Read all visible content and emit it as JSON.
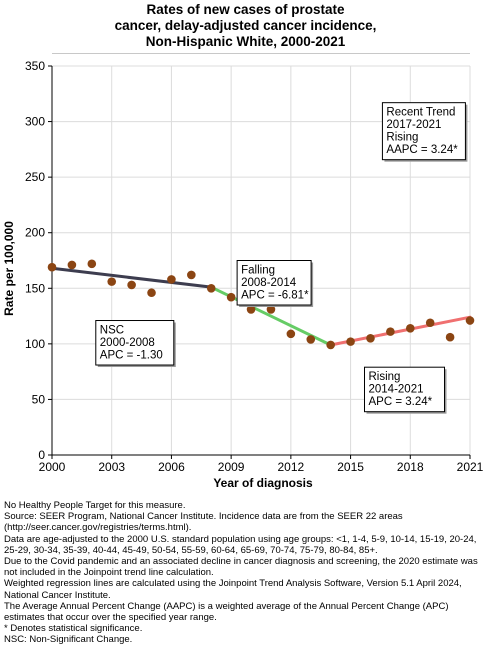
{
  "chart_data": {
    "type": "line",
    "title_lines": [
      "Rates of new cases of prostate",
      "cancer, delay-adjusted cancer incidence,",
      "Non-Hispanic White,  2000-2021"
    ],
    "xlabel": "Year of diagnosis",
    "ylabel": "Rate per 100,000",
    "xlim": [
      2000,
      2021
    ],
    "ylim": [
      0,
      350
    ],
    "x_ticks": [
      2000,
      2003,
      2006,
      2009,
      2012,
      2015,
      2018,
      2021
    ],
    "y_ticks": [
      0,
      50,
      100,
      150,
      200,
      250,
      300,
      350
    ],
    "grid": true,
    "observed": {
      "x": [
        2000,
        2001,
        2002,
        2003,
        2004,
        2005,
        2006,
        2007,
        2008,
        2009,
        2010,
        2011,
        2012,
        2013,
        2014,
        2015,
        2016,
        2017,
        2018,
        2019,
        2020,
        2021
      ],
      "y": [
        169,
        171,
        172,
        156,
        153,
        146,
        158,
        162,
        150,
        142,
        131,
        131,
        109,
        104,
        99,
        102,
        105,
        111,
        114,
        119,
        106,
        121
      ],
      "marker_color": "#8b4513"
    },
    "trend_segments": [
      {
        "x": [
          2000,
          2008
        ],
        "y": [
          168,
          151
        ],
        "color": "#3d3d4f"
      },
      {
        "x": [
          2008,
          2014
        ],
        "y": [
          151,
          99
        ],
        "color": "#66cc66"
      },
      {
        "x": [
          2014,
          2021
        ],
        "y": [
          99,
          124
        ],
        "color": "#f07070"
      }
    ],
    "annotations": [
      {
        "lines": [
          "NSC",
          "2000-2008",
          "APC = -1.30"
        ],
        "anchor_x": 2002.2,
        "anchor_y": 121,
        "box_w": 78
      },
      {
        "lines": [
          "Falling",
          "2008-2014",
          "APC = -6.81*"
        ],
        "anchor_x": 2009.3,
        "anchor_y": 175,
        "box_w": 74
      },
      {
        "lines": [
          "Rising",
          "2014-2021",
          "APC =  3.24*"
        ],
        "anchor_x": 2015.7,
        "anchor_y": 79,
        "box_w": 80
      },
      {
        "lines": [
          "Recent Trend",
          "2017-2021",
          "Rising",
          "AAPC =  3.24*"
        ],
        "anchor_x": 2016.6,
        "anchor_y": 317,
        "box_w": 83
      }
    ]
  },
  "footnotes": [
    "No Healthy People Target for this measure.",
    "Source: SEER Program, National Cancer Institute. Incidence data are from the SEER 22 areas (http://seer.cancer.gov/registries/terms.html).",
    "Data are age-adjusted to the 2000 U.S. standard population using age groups: <1, 1-4, 5-9, 10-14, 15-19, 20-24, 25-29, 30-34, 35-39, 40-44, 45-49, 50-54, 55-59, 60-64, 65-69, 70-74, 75-79, 80-84, 85+.",
    "Due to the Covid pandemic and an associated decline in cancer diagnosis and screening, the 2020 estimate was not included in the Joinpoint trend line calculation.",
    "Weighted regression lines are calculated using the Joinpoint Trend Analysis Software, Version 5.1 April 2024, National Cancer Institute.",
    "The Average Annual Percent Change (AAPC) is a weighted average of the Annual Percent Change (APC) estimates that occur over the specified year range.",
    "* Denotes statistical significance.",
    "NSC: Non-Significant Change."
  ]
}
